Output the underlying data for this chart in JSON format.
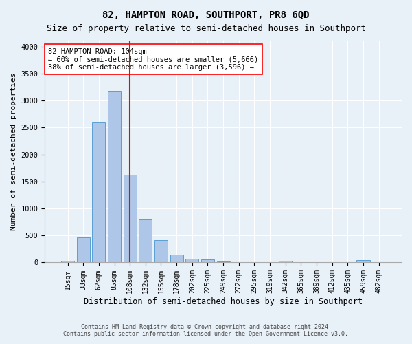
{
  "title": "82, HAMPTON ROAD, SOUTHPORT, PR8 6QD",
  "subtitle": "Size of property relative to semi-detached houses in Southport",
  "xlabel": "Distribution of semi-detached houses by size in Southport",
  "ylabel": "Number of semi-detached properties",
  "footnote1": "Contains HM Land Registry data © Crown copyright and database right 2024.",
  "footnote2": "Contains public sector information licensed under the Open Government Licence v3.0.",
  "bar_labels": [
    "15sqm",
    "38sqm",
    "62sqm",
    "85sqm",
    "108sqm",
    "132sqm",
    "155sqm",
    "178sqm",
    "202sqm",
    "225sqm",
    "249sqm",
    "272sqm",
    "295sqm",
    "319sqm",
    "342sqm",
    "365sqm",
    "389sqm",
    "412sqm",
    "435sqm",
    "459sqm",
    "482sqm"
  ],
  "bar_values": [
    30,
    460,
    2600,
    3180,
    1630,
    800,
    410,
    150,
    70,
    60,
    20,
    5,
    5,
    5,
    35,
    5,
    5,
    5,
    5,
    40,
    5
  ],
  "bar_color": "#aec6e8",
  "bar_edge_color": "#5a9fd4",
  "property_bar_index": 4,
  "vline_color": "#ff0000",
  "annotation_text": "82 HAMPTON ROAD: 104sqm\n← 60% of semi-detached houses are smaller (5,666)\n38% of semi-detached houses are larger (3,596) →",
  "annotation_box_color": "#ffffff",
  "annotation_box_edge": "#ff0000",
  "ylim": [
    0,
    4100
  ],
  "bg_color": "#e8f0f8",
  "grid_color": "#ffffff",
  "title_fontsize": 10,
  "subtitle_fontsize": 9,
  "xlabel_fontsize": 8.5,
  "ylabel_fontsize": 8,
  "tick_fontsize": 7,
  "annotation_fontsize": 7.5,
  "footnote_fontsize": 6
}
